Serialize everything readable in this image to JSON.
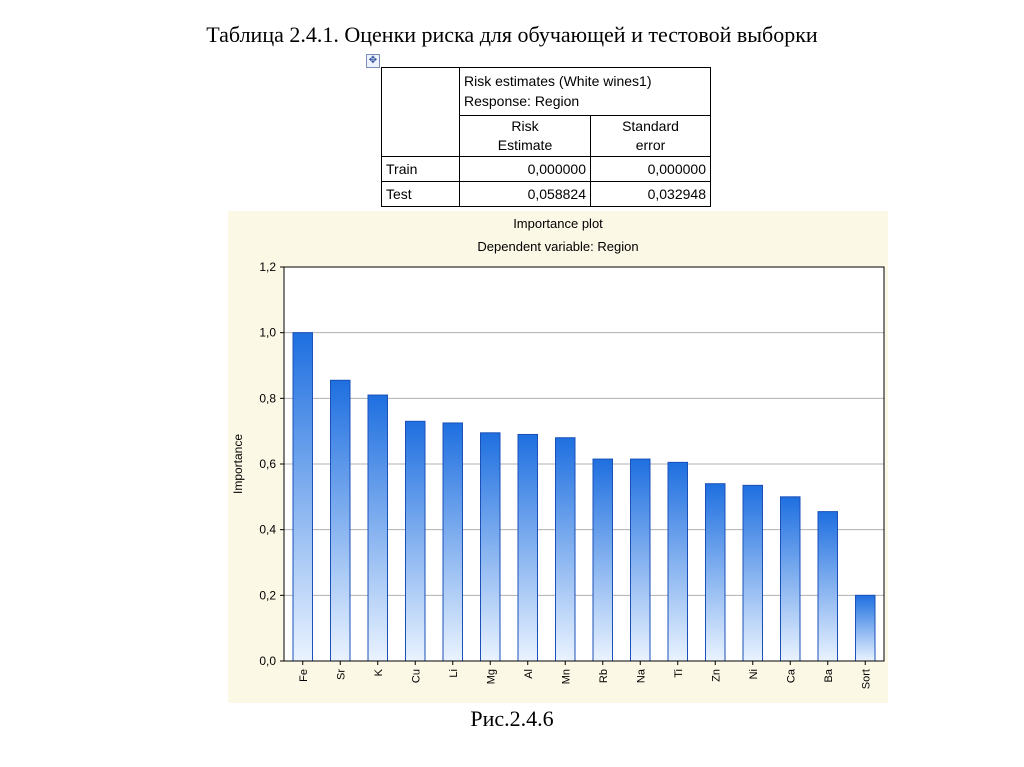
{
  "document": {
    "title": "Таблица 2.4.1. Оценки риска для обучающей и тестовой выборки",
    "caption": "Рис.2.4.6",
    "move_handle_icon": "move-arrows-icon",
    "move_handle_glyph": "✥"
  },
  "table": {
    "header_title": "Risk estimates (White  wines1)",
    "header_subtitle": "Response: Region",
    "col1_line1": "Risk",
    "col1_line2": "Estimate",
    "col2_line1": "Standard",
    "col2_line2": "error",
    "rows": [
      {
        "label": "Train",
        "risk": "0,000000",
        "se": "0,000000"
      },
      {
        "label": "Test",
        "risk": "0,058824",
        "se": "0,032948"
      }
    ]
  },
  "chart_data": {
    "type": "bar",
    "title": "Importance plot",
    "subtitle": "Dependent variable: Region",
    "xlabel": "",
    "ylabel": "Importance",
    "categories": [
      "Fe",
      "Sr",
      "K",
      "Cu",
      "Li",
      "Mg",
      "Al",
      "Mn",
      "Rb",
      "Na",
      "Ti",
      "Zn",
      "Ni",
      "Ca",
      "Ba",
      "Sort"
    ],
    "values": [
      1.0,
      0.855,
      0.81,
      0.73,
      0.725,
      0.695,
      0.69,
      0.68,
      0.615,
      0.615,
      0.605,
      0.54,
      0.535,
      0.5,
      0.455,
      0.2
    ],
    "ylim": [
      0,
      1.2
    ],
    "yticks": [
      0,
      0.2,
      0.4,
      0.6,
      0.8,
      1.0,
      1.2
    ],
    "ytick_labels": [
      "0,0",
      "0,2",
      "0,4",
      "0,6",
      "0,8",
      "1,0",
      "1,2"
    ],
    "grid": true,
    "legend": "none",
    "colors": {
      "bar_top": "#1e6fe0",
      "bar_bottom": "#eaf3ff",
      "bar_stroke": "#1b50b8",
      "panel": "#fcf8e6",
      "grid": "#b0b0b0"
    }
  }
}
